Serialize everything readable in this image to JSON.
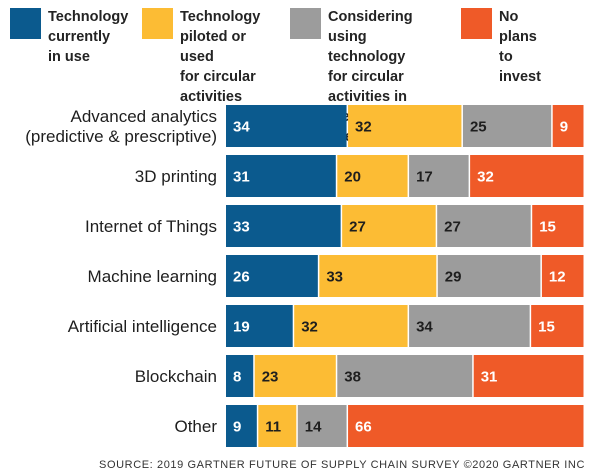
{
  "chart_data": {
    "type": "bar",
    "orientation": "horizontal",
    "stacked": true,
    "percent_stacked": true,
    "legend_position": "top",
    "categories": [
      "Advanced analytics (predictive & prescriptive)",
      "3D printing",
      "Internet of Things",
      "Machine learning",
      "Artificial intelligence",
      "Blockchain",
      "Other"
    ],
    "category_lines": [
      [
        "Advanced analytics",
        "(predictive & prescriptive)"
      ],
      [
        "3D printing"
      ],
      [
        "Internet of Things"
      ],
      [
        "Machine learning"
      ],
      [
        "Artificial intelligence"
      ],
      [
        "Blockchain"
      ],
      [
        "Other"
      ]
    ],
    "series": [
      {
        "name": "Technology currently in use",
        "legend_lines": "Technology\ncurrently\nin use",
        "color": "#0b5a8e",
        "label_color": "#ffffff",
        "values": [
          34,
          31,
          33,
          26,
          19,
          8,
          9
        ]
      },
      {
        "name": "Technology piloted or used for circular activities",
        "legend_lines": "Technology\npiloted or used\nfor circular\nactivities",
        "color": "#fcbc34",
        "label_color": "#1e1e1e",
        "values": [
          32,
          20,
          27,
          33,
          32,
          23,
          11
        ]
      },
      {
        "name": "Considering using technology for circular activities in the next five years",
        "legend_lines": "Considering using\ntechnology for circular\nactivities in the next\nfive years",
        "color": "#9c9c9c",
        "label_color": "#1e1e1e",
        "values": [
          25,
          17,
          27,
          29,
          34,
          38,
          14
        ]
      },
      {
        "name": "No plans to invest",
        "legend_lines": "No plans\nto invest",
        "color": "#ef5a28",
        "label_color": "#ffffff",
        "values": [
          9,
          32,
          15,
          12,
          15,
          31,
          66
        ]
      }
    ],
    "title": "",
    "xlabel": "",
    "ylabel": ""
  },
  "source": "SOURCE: 2019 GARTNER FUTURE OF SUPPLY CHAIN SURVEY ©2020 GARTNER INC"
}
